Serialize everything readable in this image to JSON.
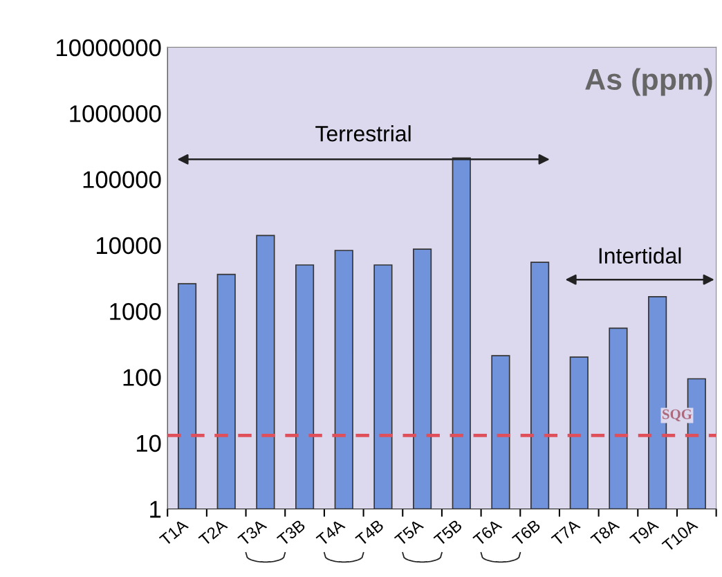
{
  "chart_data": {
    "type": "bar",
    "title": "As (ppm)",
    "categories": [
      "T1A",
      "T2A",
      "T3A",
      "T3B",
      "T4A",
      "T4B",
      "T5A",
      "T5B",
      "T6A",
      "T6B",
      "T7A",
      "T8A",
      "T9A",
      "T10A"
    ],
    "values": [
      2600,
      3600,
      14000,
      5000,
      8300,
      5000,
      8700,
      210000,
      210,
      5500,
      200,
      550,
      1650,
      93
    ],
    "color": "#7193dc",
    "log": true,
    "ylim": [
      1,
      10000000
    ],
    "yticks": [
      1,
      10,
      100,
      1000,
      10000,
      100000,
      1000000,
      10000000
    ],
    "ref_lines": [
      {
        "axis": "y",
        "value": 13,
        "label": "SQG",
        "color": "#e0505a",
        "line_style": "dashed"
      }
    ],
    "annotations": [
      "Terrestrial",
      "Intertidal"
    ],
    "grid": false,
    "legend": false
  }
}
